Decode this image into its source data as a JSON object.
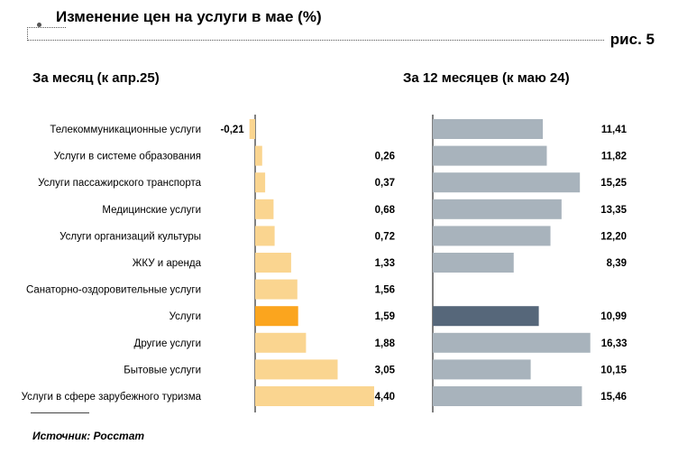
{
  "header": {
    "title": "Изменение цен на услуги в мае (%)",
    "figure_label": "рис. 5"
  },
  "left_panel": {
    "subtitle": "За месяц (к апр.25)"
  },
  "right_panel": {
    "subtitle": "За 12 месяцев (к маю 24)"
  },
  "footer": {
    "source": "Источник: Росстат"
  },
  "colors": {
    "left_bar": "#fad590",
    "left_highlight": "#fba51e",
    "right_bar": "#a8b3bc",
    "right_highlight": "#56677a",
    "axis": "#000000"
  },
  "chart_data": [
    {
      "type": "bar",
      "orientation": "horizontal",
      "title": "За месяц (к апр.25)",
      "categories": [
        "Телекоммуникационные услуги",
        "Услуги в системе образования",
        "Услуги пассажирского транспорта",
        "Медицинские услуги",
        "Услуги организаций культуры",
        "ЖКУ и аренда",
        "Санаторно-оздоровительные услуги",
        "Услуги",
        "Другие услуги",
        "Бытовые услуги",
        "Услуги в сфере зарубежного туризма"
      ],
      "values": [
        -0.21,
        0.26,
        0.37,
        0.68,
        0.72,
        1.33,
        1.56,
        1.59,
        1.88,
        3.05,
        4.4
      ],
      "labels": [
        "-0,21",
        "0,26",
        "0,37",
        "0,68",
        "0,72",
        "1,33",
        "1,56",
        "1,59",
        "1,88",
        "3,05",
        "4,40"
      ],
      "highlight": "Услуги",
      "grid": false
    },
    {
      "type": "bar",
      "orientation": "horizontal",
      "title": "За 12 месяцев (к маю 24)",
      "categories": [
        "Телекоммуникационные услуги",
        "Услуги в системе образования",
        "Услуги пассажирского транспорта",
        "Медицинские услуги",
        "Услуги организаций культуры",
        "ЖКУ и аренда",
        "Санаторно-оздоровительные услуги",
        "Услуги",
        "Другие услуги",
        "Бытовые услуги",
        "Услуги в сфере зарубежного туризма"
      ],
      "values": [
        11.41,
        11.82,
        15.25,
        13.35,
        12.2,
        8.39,
        null,
        10.99,
        16.33,
        10.15,
        15.46
      ],
      "labels": [
        "11,41",
        "11,82",
        "15,25",
        "13,35",
        "12,20",
        "8,39",
        "",
        "10,99",
        "16,33",
        "10,15",
        "15,46"
      ],
      "highlight": "Услуги",
      "grid": false
    }
  ]
}
